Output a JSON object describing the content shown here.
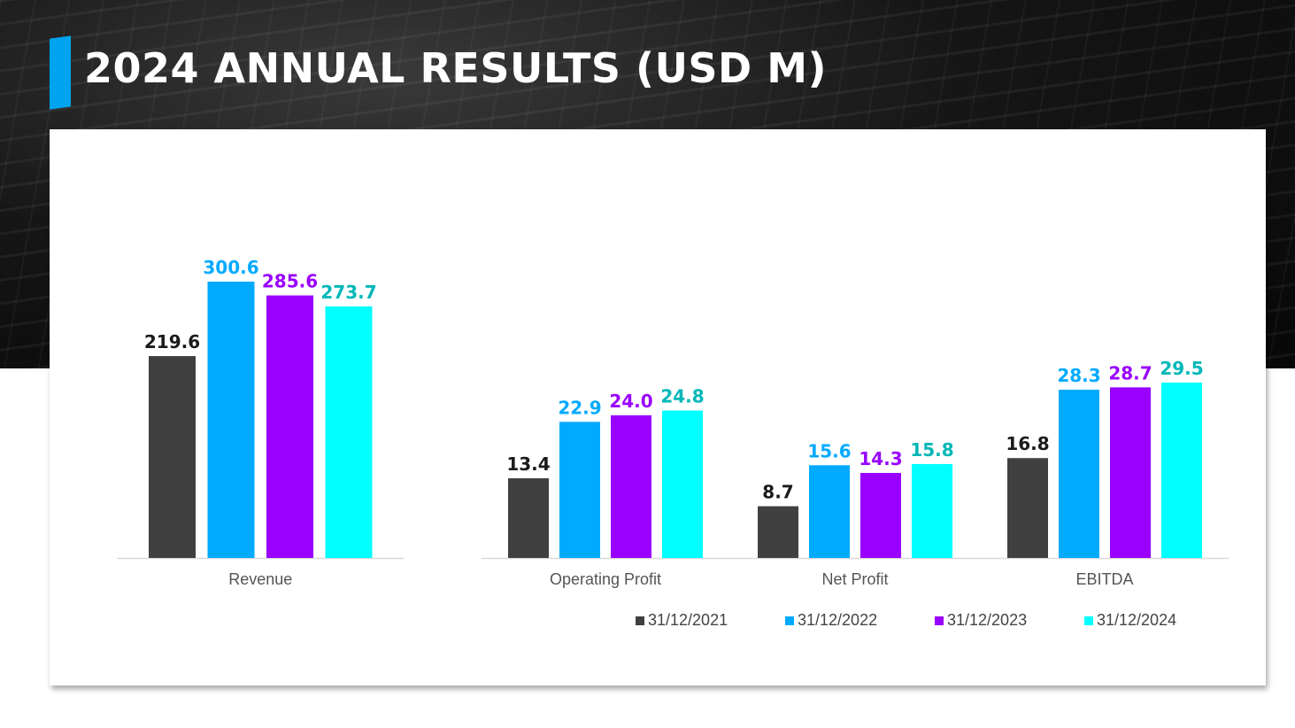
{
  "title": "2024 ANNUAL RESULTS (USD M)",
  "colors": {
    "accent": "#00a3ef",
    "series": [
      "#404040",
      "#00aaff",
      "#9900ff",
      "#00ffff"
    ],
    "labels": [
      "#1a1a1a",
      "#00aaff",
      "#9900ff",
      "#00b7b7"
    ],
    "axis_text": "#555555",
    "axis_line": "#d9d9d9"
  },
  "chart_data": [
    {
      "type": "bar",
      "categories": [
        "Revenue"
      ],
      "series": [
        {
          "name": "31/12/2021",
          "values": [
            219.6
          ]
        },
        {
          "name": "31/12/2022",
          "values": [
            300.6
          ]
        },
        {
          "name": "31/12/2023",
          "values": [
            285.6
          ]
        },
        {
          "name": "31/12/2024",
          "values": [
            273.7
          ]
        }
      ],
      "ylim": [
        0,
        300.6
      ],
      "grid": false,
      "data_labels": true
    },
    {
      "type": "bar",
      "categories": [
        "Operating Profit",
        "Net Profit",
        "EBITDA"
      ],
      "series": [
        {
          "name": "31/12/2021",
          "values": [
            13.4,
            8.7,
            16.8
          ]
        },
        {
          "name": "31/12/2022",
          "values": [
            22.9,
            15.6,
            28.3
          ]
        },
        {
          "name": "31/12/2023",
          "values": [
            24.0,
            14.3,
            28.7
          ]
        },
        {
          "name": "31/12/2024",
          "values": [
            24.8,
            15.8,
            29.5
          ]
        }
      ],
      "ylim": [
        0,
        29.5
      ],
      "grid": false,
      "data_labels": true,
      "legend": "bottom"
    }
  ]
}
